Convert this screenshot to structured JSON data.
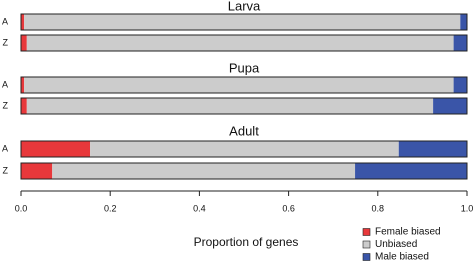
{
  "chart_data": [
    {
      "type": "stacked-bar",
      "title": "Larva",
      "categories": [
        "A",
        "Z"
      ],
      "series": [
        {
          "name": "Female biased",
          "color": "#e8383b",
          "values": [
            0.007,
            0.013
          ]
        },
        {
          "name": "Unbiased",
          "color": "#cccccc",
          "values": [
            0.978,
            0.957
          ]
        },
        {
          "name": "Male biased",
          "color": "#3a55a8",
          "values": [
            0.015,
            0.03
          ]
        }
      ],
      "xlim": [
        0,
        1
      ]
    },
    {
      "type": "stacked-bar",
      "title": "Pupa",
      "categories": [
        "A",
        "Z"
      ],
      "series": [
        {
          "name": "Female biased",
          "color": "#e8383b",
          "values": [
            0.007,
            0.013
          ]
        },
        {
          "name": "Unbiased",
          "color": "#cccccc",
          "values": [
            0.963,
            0.911
          ]
        },
        {
          "name": "Male biased",
          "color": "#3a55a8",
          "values": [
            0.03,
            0.076
          ]
        }
      ],
      "xlim": [
        0,
        1
      ]
    },
    {
      "type": "stacked-bar",
      "title": "Adult",
      "categories": [
        "A",
        "Z"
      ],
      "series": [
        {
          "name": "Female biased",
          "color": "#e8383b",
          "values": [
            0.155,
            0.07
          ]
        },
        {
          "name": "Unbiased",
          "color": "#cccccc",
          "values": [
            0.692,
            0.679
          ]
        },
        {
          "name": "Male biased",
          "color": "#3a55a8",
          "values": [
            0.153,
            0.251
          ]
        }
      ],
      "xlim": [
        0,
        1
      ],
      "xticks": [
        {
          "value": 0,
          "label": "0.0"
        },
        0.2,
        0.4,
        0.6,
        0.8,
        {
          "value": 1,
          "label": "1.0"
        }
      ],
      "xlabel": "Proportion of genes",
      "legend": "bottom-right"
    }
  ]
}
